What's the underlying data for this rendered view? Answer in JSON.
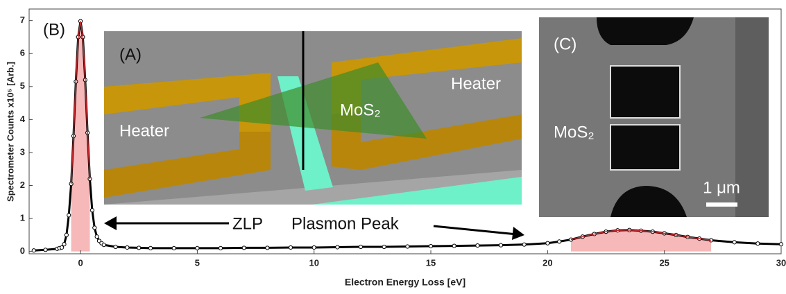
{
  "chart_data": {
    "type": "scatter",
    "x_label": "Electron Energy Loss [eV]",
    "y_label": "Spectrometer Counts x10⁵ [Arb.]",
    "x": [
      -2,
      -1.5,
      -1,
      -0.9,
      -0.8,
      -0.7,
      -0.6,
      -0.5,
      -0.4,
      -0.3,
      -0.2,
      -0.1,
      0,
      0.1,
      0.2,
      0.3,
      0.4,
      0.5,
      0.6,
      0.7,
      0.8,
      0.9,
      1,
      1.5,
      2,
      2.5,
      3,
      4,
      5,
      6,
      7,
      8,
      9,
      10,
      11,
      12,
      13,
      14,
      15,
      16,
      17,
      18,
      19,
      20,
      20.5,
      21,
      21.5,
      22,
      22.5,
      23,
      23.5,
      24,
      24.5,
      25,
      25.5,
      26,
      26.5,
      27,
      28,
      29,
      30
    ],
    "values": [
      0.03,
      0.05,
      0.08,
      0.1,
      0.12,
      0.22,
      0.5,
      1.1,
      2.05,
      3.5,
      5.15,
      6.5,
      6.98,
      6.5,
      5.2,
      3.6,
      2.2,
      1.25,
      0.72,
      0.45,
      0.32,
      0.25,
      0.2,
      0.14,
      0.12,
      0.11,
      0.1,
      0.1,
      0.1,
      0.1,
      0.11,
      0.11,
      0.12,
      0.12,
      0.13,
      0.14,
      0.14,
      0.15,
      0.16,
      0.17,
      0.18,
      0.19,
      0.21,
      0.25,
      0.3,
      0.36,
      0.45,
      0.53,
      0.6,
      0.64,
      0.65,
      0.63,
      0.6,
      0.55,
      0.5,
      0.44,
      0.39,
      0.34,
      0.28,
      0.24,
      0.22
    ],
    "color": "#000000",
    "fit_color": "#c0282d",
    "shade_color": "#f6b8b8",
    "shaded_ranges": [
      [
        -0.4,
        0.4
      ],
      [
        21,
        27
      ]
    ],
    "xlim": [
      -2.2,
      30
    ],
    "ylim": [
      -0.07,
      7.35
    ],
    "xticks": [
      0,
      5,
      10,
      15,
      20,
      25,
      30
    ],
    "yticks": [
      0,
      1,
      2,
      3,
      4,
      5,
      6,
      7
    ],
    "annotations": {
      "panel_b": "(B)",
      "zlp": "ZLP",
      "plasmon": "Plasmon Peak"
    },
    "inset_a": {
      "panel": "(A)",
      "heater_left": "Heater",
      "heater_right": "Heater",
      "material": "MoS₂"
    },
    "inset_c": {
      "panel": "(C)",
      "material": "MoS₂",
      "scale": "1 μm"
    }
  }
}
